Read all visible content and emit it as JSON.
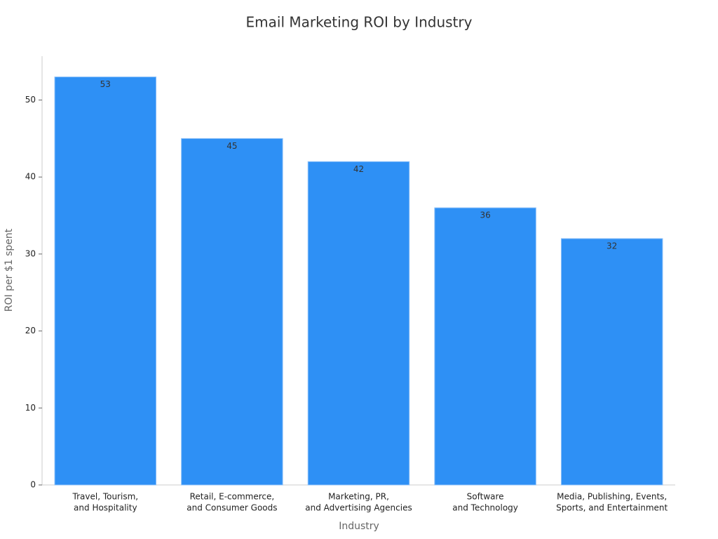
{
  "chart_data": {
    "type": "bar",
    "title": "Email Marketing ROI by Industry",
    "x_label": "Industry",
    "y_label": "ROI per $1 spent",
    "categories": [
      [
        "Travel, Tourism,",
        "and Hospitality"
      ],
      [
        "Retail, E-commerce,",
        "and Consumer Goods"
      ],
      [
        "Marketing, PR,",
        "and Advertising Agencies"
      ],
      [
        "Software",
        "and Technology"
      ],
      [
        "Media, Publishing, Events,",
        "Sports, and Entertainment"
      ]
    ],
    "values": [
      53,
      45,
      42,
      36,
      32
    ],
    "color": "#2e90f5",
    "ylim": [
      0,
      55.7
    ],
    "yticks": [
      0,
      10,
      20,
      30,
      40,
      50
    ],
    "grid": false
  }
}
